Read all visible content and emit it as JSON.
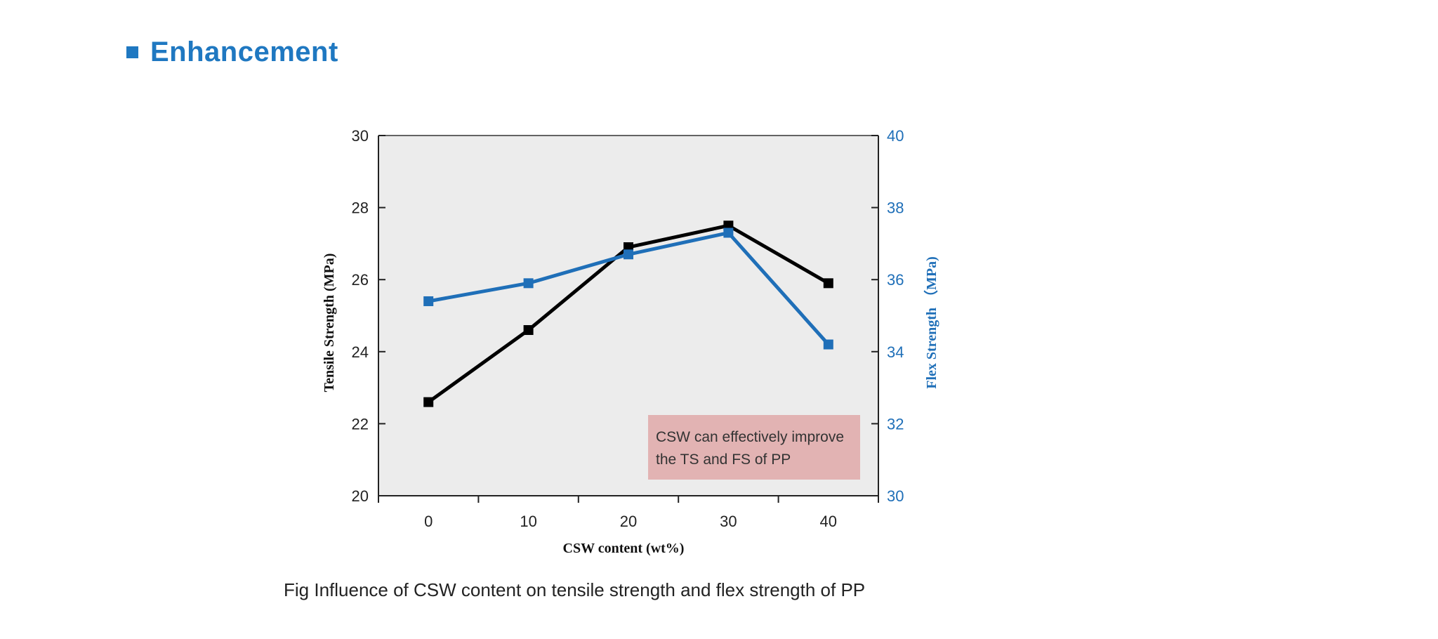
{
  "heading": {
    "title": "Enhancement",
    "bullet_icon": "square-bullet-icon",
    "color": "#1f78c1"
  },
  "caption": "Fig Influence of CSW content on tensile strength and flex strength of PP",
  "chart_data": {
    "type": "line",
    "title": "",
    "xlabel": "CSW content (wt%)",
    "ylabel": "Tensile Strength (MPa)",
    "y2label": "Flex Strength （MPa)",
    "x": [
      0,
      10,
      20,
      30,
      40
    ],
    "xlim": [
      -5,
      45
    ],
    "ylim": [
      20,
      30
    ],
    "y2lim": [
      30,
      40
    ],
    "xticks": [
      "0",
      "10",
      "20",
      "30",
      "40"
    ],
    "yticks": [
      "20",
      "22",
      "24",
      "26",
      "28",
      "30"
    ],
    "y2ticks": [
      "30",
      "32",
      "34",
      "36",
      "38",
      "40"
    ],
    "grid": false,
    "plot_background": "#ececec",
    "series": [
      {
        "axis": "left",
        "color": "#000000",
        "marker": "square",
        "values": [
          22.6,
          24.6,
          26.9,
          27.5,
          25.9
        ]
      },
      {
        "axis": "right",
        "color": "#1f6fb8",
        "marker": "square",
        "values": [
          35.4,
          35.9,
          36.7,
          37.3,
          34.2
        ]
      }
    ],
    "annotation": {
      "lines": [
        "CSW can effectively improve",
        "the TS and FS of PP"
      ],
      "background": "#e2b3b3"
    }
  }
}
